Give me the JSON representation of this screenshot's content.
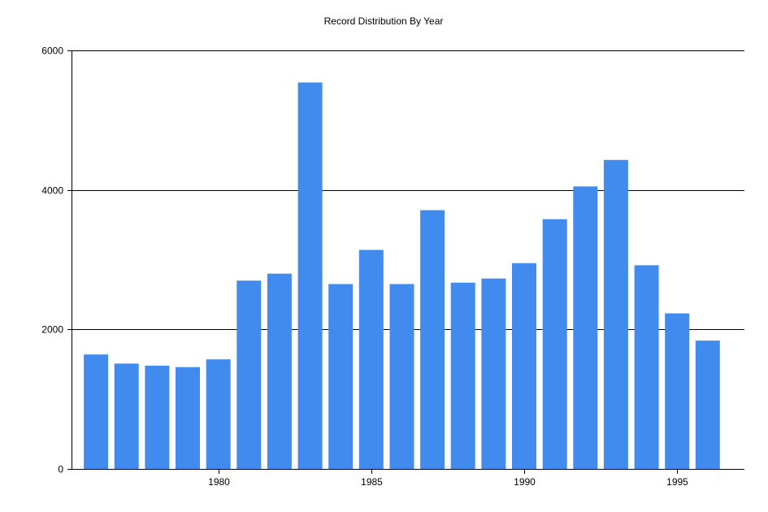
{
  "chart_data": {
    "type": "bar",
    "title": "Record Distribution By Year",
    "xlabel": "",
    "ylabel": "",
    "x": [
      1976,
      1977,
      1978,
      1979,
      1980,
      1981,
      1982,
      1983,
      1984,
      1985,
      1986,
      1987,
      1988,
      1989,
      1990,
      1991,
      1992,
      1993,
      1994,
      1995,
      1996
    ],
    "values": [
      1640,
      1510,
      1480,
      1460,
      1570,
      2700,
      2800,
      5540,
      2650,
      3140,
      2650,
      3710,
      2670,
      2730,
      2950,
      3580,
      4050,
      4430,
      2920,
      2230,
      1840
    ],
    "xlim": [
      1975.2,
      1997.2
    ],
    "ylim": [
      0,
      6000
    ],
    "x_ticks": [
      1980,
      1985,
      1990,
      1995
    ],
    "y_ticks": [
      0,
      2000,
      4000,
      6000
    ],
    "grid": "horizontal",
    "bar_color": "#418bef",
    "legend": "none"
  }
}
